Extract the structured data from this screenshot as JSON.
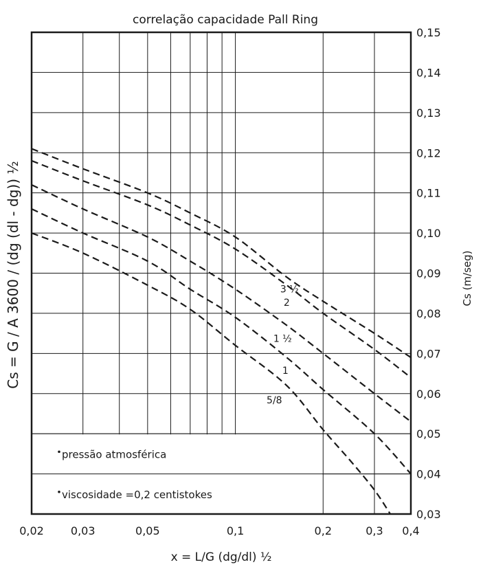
{
  "chart_data": {
    "type": "line",
    "title": "correlação capacidade Pall Ring",
    "xlabel": "x = L/G (dg/dl) ½",
    "ylabel_left": "Cs = G / A 3600 / (dg (dl - dg)) ½",
    "ylabel_right": "Cs (m/seg)",
    "x_scale": "log",
    "xlim": [
      0.02,
      0.4
    ],
    "ylim": [
      0.03,
      0.15
    ],
    "x_ticks": [
      0.02,
      0.03,
      0.05,
      0.1,
      0.2,
      0.3,
      0.4
    ],
    "x_tick_labels": [
      "0,02",
      "0,03",
      "0,05",
      "0,1",
      "0,2",
      "0,3",
      "0,4"
    ],
    "x_gridlines": [
      0.02,
      0.03,
      0.04,
      0.05,
      0.06,
      0.07,
      0.08,
      0.09,
      0.1,
      0.2,
      0.3,
      0.4
    ],
    "y_ticks": [
      0.03,
      0.04,
      0.05,
      0.06,
      0.07,
      0.08,
      0.09,
      0.1,
      0.11,
      0.12,
      0.13,
      0.14,
      0.15
    ],
    "y_tick_labels": [
      "0,03",
      "0,04",
      "0,05",
      "0,06",
      "0,07",
      "0,08",
      "0,09",
      "0,10",
      "0,11",
      "0,12",
      "0,13",
      "0,14",
      "0,15"
    ],
    "grid": true,
    "line_style": "dashed",
    "series": [
      {
        "name": "3 ½",
        "x": [
          0.02,
          0.03,
          0.05,
          0.07,
          0.1,
          0.15,
          0.2,
          0.3,
          0.4
        ],
        "y": [
          0.121,
          0.116,
          0.11,
          0.105,
          0.099,
          0.089,
          0.083,
          0.075,
          0.069
        ]
      },
      {
        "name": "2",
        "x": [
          0.02,
          0.03,
          0.05,
          0.07,
          0.1,
          0.15,
          0.2,
          0.3,
          0.4
        ],
        "y": [
          0.118,
          0.113,
          0.107,
          0.102,
          0.096,
          0.087,
          0.08,
          0.071,
          0.064
        ]
      },
      {
        "name": "1 ½",
        "x": [
          0.02,
          0.03,
          0.05,
          0.07,
          0.1,
          0.15,
          0.2,
          0.3,
          0.4
        ],
        "y": [
          0.112,
          0.106,
          0.099,
          0.093,
          0.086,
          0.077,
          0.07,
          0.06,
          0.053
        ]
      },
      {
        "name": "1",
        "x": [
          0.02,
          0.03,
          0.05,
          0.07,
          0.1,
          0.15,
          0.2,
          0.3,
          0.4
        ],
        "y": [
          0.106,
          0.1,
          0.093,
          0.086,
          0.079,
          0.069,
          0.061,
          0.05,
          0.04
        ]
      },
      {
        "name": "5/8",
        "x": [
          0.02,
          0.03,
          0.05,
          0.07,
          0.1,
          0.15,
          0.2,
          0.25,
          0.3,
          0.34
        ],
        "y": [
          0.1,
          0.095,
          0.087,
          0.081,
          0.072,
          0.062,
          0.051,
          0.043,
          0.036,
          0.03
        ]
      }
    ],
    "annotations": [
      {
        "text": "pressão atmosférica"
      },
      {
        "text": "viscosidade =0,2 centistokes"
      }
    ]
  }
}
